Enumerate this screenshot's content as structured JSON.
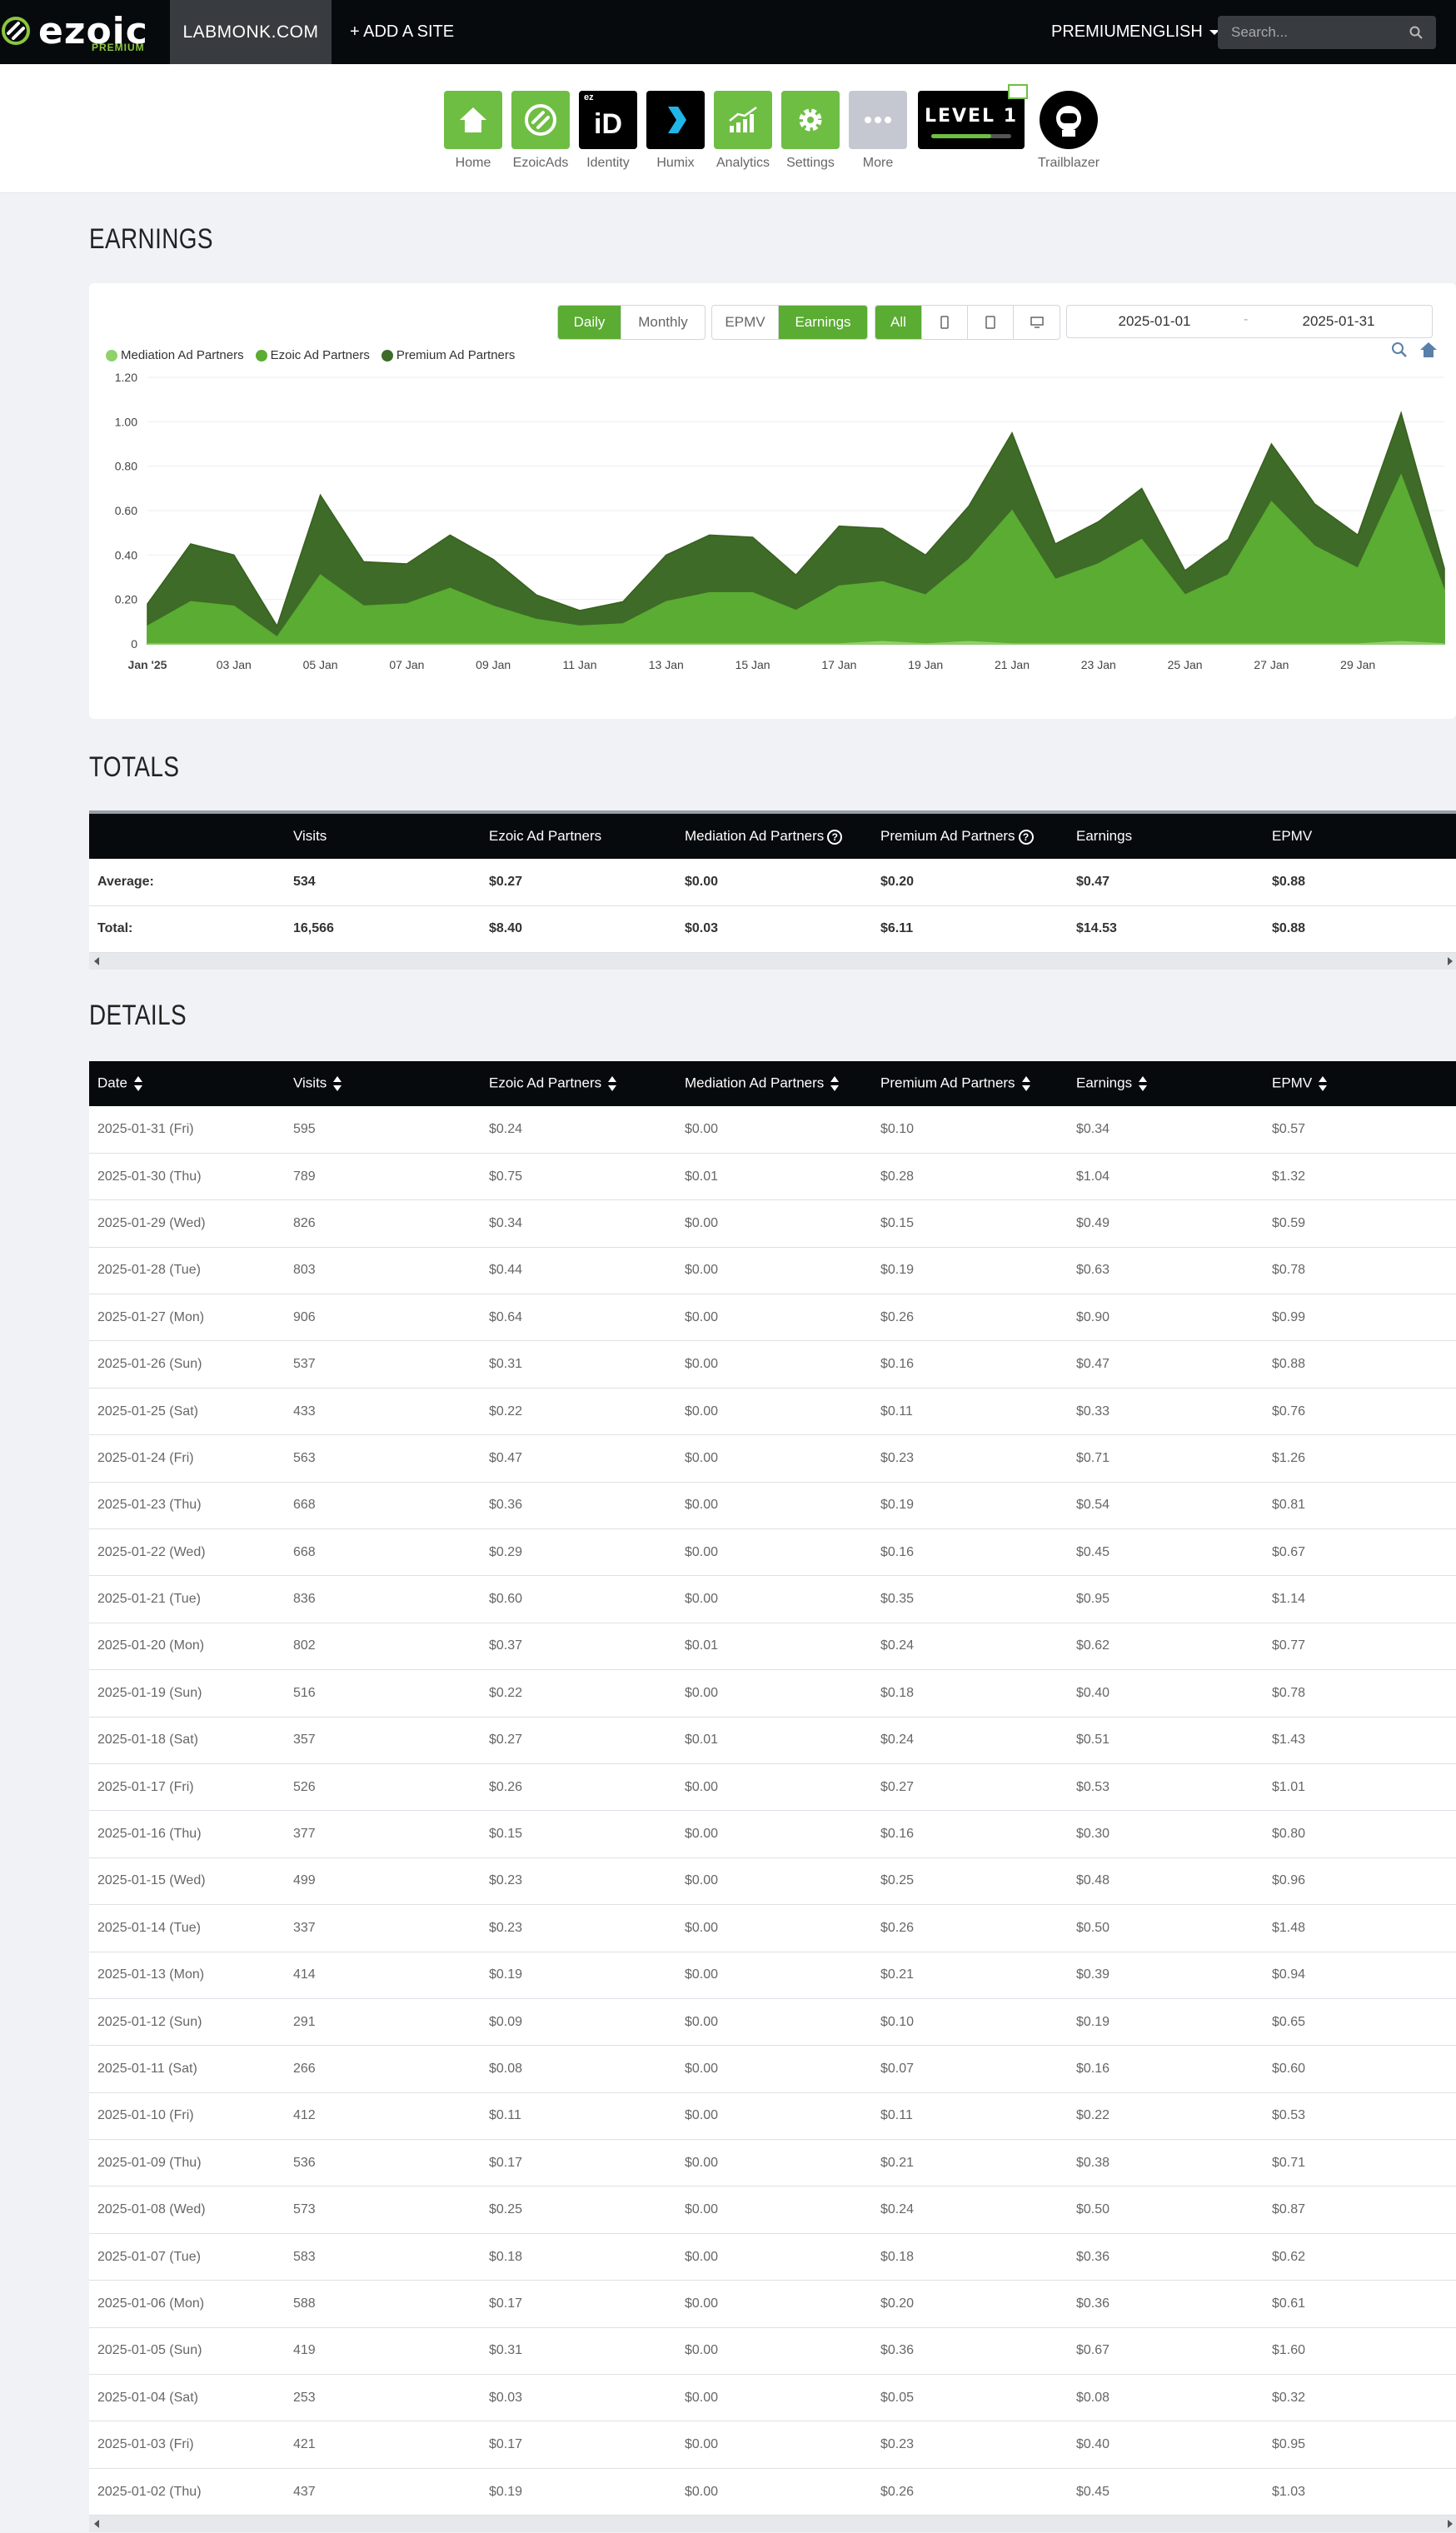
{
  "topbar": {
    "brand": "ezoic",
    "brand_tier": "PREMIUM",
    "site": "LABMONK.COM",
    "add_site": "+ ADD A SITE",
    "premium": "PREMIUM",
    "language": "ENGLISH",
    "search_placeholder": "Search..."
  },
  "apps": [
    {
      "label": "Home",
      "icon": "home-icon"
    },
    {
      "label": "EzoicAds",
      "icon": "ezoicads-icon"
    },
    {
      "label": "Identity",
      "icon": "identity-icon",
      "badge": "ez",
      "text": "iD"
    },
    {
      "label": "Humix",
      "icon": "humix-icon"
    },
    {
      "label": "Analytics",
      "icon": "analytics-icon"
    },
    {
      "label": "Settings",
      "icon": "gear-icon"
    },
    {
      "label": "More",
      "icon": "more-icon"
    }
  ],
  "level": {
    "label": "LEVEL 1",
    "progress": 0.75
  },
  "trailblazer": {
    "label": "Trailblazer"
  },
  "sections": {
    "earnings": "EARNINGS",
    "totals": "TOTALS",
    "details": "DETAILS"
  },
  "controls": {
    "daily": "Daily",
    "monthly": "Monthly",
    "epmv": "EPMV",
    "earnings": "Earnings",
    "all": "All",
    "start_date": "2025-01-01",
    "end_date": "2025-01-31",
    "dash": "-"
  },
  "colors": {
    "mediation": "#8fd16b",
    "ezoic": "#5aac32",
    "premium": "#3e6b27",
    "accent": "#5aac32"
  },
  "chart_data": {
    "type": "area",
    "stacked": true,
    "x": [
      "2025-01-01",
      "2025-01-02",
      "2025-01-03",
      "2025-01-04",
      "2025-01-05",
      "2025-01-06",
      "2025-01-07",
      "2025-01-08",
      "2025-01-09",
      "2025-01-10",
      "2025-01-11",
      "2025-01-12",
      "2025-01-13",
      "2025-01-14",
      "2025-01-15",
      "2025-01-16",
      "2025-01-17",
      "2025-01-18",
      "2025-01-19",
      "2025-01-20",
      "2025-01-21",
      "2025-01-22",
      "2025-01-23",
      "2025-01-24",
      "2025-01-25",
      "2025-01-26",
      "2025-01-27",
      "2025-01-28",
      "2025-01-29",
      "2025-01-30",
      "2025-01-31"
    ],
    "x_tick_labels": [
      "Jan '25",
      "03 Jan",
      "05 Jan",
      "07 Jan",
      "09 Jan",
      "11 Jan",
      "13 Jan",
      "15 Jan",
      "17 Jan",
      "19 Jan",
      "21 Jan",
      "23 Jan",
      "25 Jan",
      "27 Jan",
      "29 Jan"
    ],
    "series": [
      {
        "name": "Mediation Ad Partners",
        "values": [
          0.0,
          0.0,
          0.0,
          0.0,
          0.0,
          0.0,
          0.0,
          0.0,
          0.0,
          0.0,
          0.0,
          0.0,
          0.0,
          0.0,
          0.0,
          0.0,
          0.0,
          0.01,
          0.0,
          0.01,
          0.0,
          0.0,
          0.0,
          0.0,
          0.0,
          0.0,
          0.0,
          0.0,
          0.0,
          0.01,
          0.0
        ]
      },
      {
        "name": "Ezoic Ad Partners",
        "values": [
          0.08,
          0.19,
          0.17,
          0.03,
          0.31,
          0.17,
          0.18,
          0.25,
          0.17,
          0.11,
          0.08,
          0.09,
          0.19,
          0.23,
          0.23,
          0.15,
          0.26,
          0.27,
          0.22,
          0.37,
          0.6,
          0.29,
          0.36,
          0.47,
          0.22,
          0.31,
          0.64,
          0.44,
          0.34,
          0.75,
          0.24
        ]
      },
      {
        "name": "Premium Ad Partners",
        "values": [
          0.1,
          0.26,
          0.23,
          0.05,
          0.36,
          0.2,
          0.18,
          0.24,
          0.21,
          0.11,
          0.07,
          0.1,
          0.21,
          0.26,
          0.25,
          0.16,
          0.27,
          0.24,
          0.18,
          0.24,
          0.35,
          0.16,
          0.19,
          0.23,
          0.11,
          0.16,
          0.26,
          0.19,
          0.15,
          0.28,
          0.1
        ]
      }
    ],
    "y_ticks": [
      "0",
      "0.20",
      "0.40",
      "0.60",
      "0.80",
      "1.00",
      "1.20"
    ],
    "ylim": [
      0,
      1.2
    ],
    "legend": "top-left"
  },
  "totals": {
    "headers": [
      "",
      "Visits",
      "Ezoic Ad Partners",
      "Mediation Ad Partners",
      "Premium Ad Partners",
      "Earnings",
      "EPMV"
    ],
    "rows": [
      [
        "Average:",
        "534",
        "$0.27",
        "$0.00",
        "$0.20",
        "$0.47",
        "$0.88"
      ],
      [
        "Total:",
        "16,566",
        "$8.40",
        "$0.03",
        "$6.11",
        "$14.53",
        "$0.88"
      ]
    ]
  },
  "details": {
    "headers": [
      "Date",
      "Visits",
      "Ezoic Ad Partners",
      "Mediation Ad Partners",
      "Premium Ad Partners",
      "Earnings",
      "EPMV"
    ],
    "rows": [
      [
        "2025-01-31 (Fri)",
        "595",
        "$0.24",
        "$0.00",
        "$0.10",
        "$0.34",
        "$0.57"
      ],
      [
        "2025-01-30 (Thu)",
        "789",
        "$0.75",
        "$0.01",
        "$0.28",
        "$1.04",
        "$1.32"
      ],
      [
        "2025-01-29 (Wed)",
        "826",
        "$0.34",
        "$0.00",
        "$0.15",
        "$0.49",
        "$0.59"
      ],
      [
        "2025-01-28 (Tue)",
        "803",
        "$0.44",
        "$0.00",
        "$0.19",
        "$0.63",
        "$0.78"
      ],
      [
        "2025-01-27 (Mon)",
        "906",
        "$0.64",
        "$0.00",
        "$0.26",
        "$0.90",
        "$0.99"
      ],
      [
        "2025-01-26 (Sun)",
        "537",
        "$0.31",
        "$0.00",
        "$0.16",
        "$0.47",
        "$0.88"
      ],
      [
        "2025-01-25 (Sat)",
        "433",
        "$0.22",
        "$0.00",
        "$0.11",
        "$0.33",
        "$0.76"
      ],
      [
        "2025-01-24 (Fri)",
        "563",
        "$0.47",
        "$0.00",
        "$0.23",
        "$0.71",
        "$1.26"
      ],
      [
        "2025-01-23 (Thu)",
        "668",
        "$0.36",
        "$0.00",
        "$0.19",
        "$0.54",
        "$0.81"
      ],
      [
        "2025-01-22 (Wed)",
        "668",
        "$0.29",
        "$0.00",
        "$0.16",
        "$0.45",
        "$0.67"
      ],
      [
        "2025-01-21 (Tue)",
        "836",
        "$0.60",
        "$0.00",
        "$0.35",
        "$0.95",
        "$1.14"
      ],
      [
        "2025-01-20 (Mon)",
        "802",
        "$0.37",
        "$0.01",
        "$0.24",
        "$0.62",
        "$0.77"
      ],
      [
        "2025-01-19 (Sun)",
        "516",
        "$0.22",
        "$0.00",
        "$0.18",
        "$0.40",
        "$0.78"
      ],
      [
        "2025-01-18 (Sat)",
        "357",
        "$0.27",
        "$0.01",
        "$0.24",
        "$0.51",
        "$1.43"
      ],
      [
        "2025-01-17 (Fri)",
        "526",
        "$0.26",
        "$0.00",
        "$0.27",
        "$0.53",
        "$1.01"
      ],
      [
        "2025-01-16 (Thu)",
        "377",
        "$0.15",
        "$0.00",
        "$0.16",
        "$0.30",
        "$0.80"
      ],
      [
        "2025-01-15 (Wed)",
        "499",
        "$0.23",
        "$0.00",
        "$0.25",
        "$0.48",
        "$0.96"
      ],
      [
        "2025-01-14 (Tue)",
        "337",
        "$0.23",
        "$0.00",
        "$0.26",
        "$0.50",
        "$1.48"
      ],
      [
        "2025-01-13 (Mon)",
        "414",
        "$0.19",
        "$0.00",
        "$0.21",
        "$0.39",
        "$0.94"
      ],
      [
        "2025-01-12 (Sun)",
        "291",
        "$0.09",
        "$0.00",
        "$0.10",
        "$0.19",
        "$0.65"
      ],
      [
        "2025-01-11 (Sat)",
        "266",
        "$0.08",
        "$0.00",
        "$0.07",
        "$0.16",
        "$0.60"
      ],
      [
        "2025-01-10 (Fri)",
        "412",
        "$0.11",
        "$0.00",
        "$0.11",
        "$0.22",
        "$0.53"
      ],
      [
        "2025-01-09 (Thu)",
        "536",
        "$0.17",
        "$0.00",
        "$0.21",
        "$0.38",
        "$0.71"
      ],
      [
        "2025-01-08 (Wed)",
        "573",
        "$0.25",
        "$0.00",
        "$0.24",
        "$0.50",
        "$0.87"
      ],
      [
        "2025-01-07 (Tue)",
        "583",
        "$0.18",
        "$0.00",
        "$0.18",
        "$0.36",
        "$0.62"
      ],
      [
        "2025-01-06 (Mon)",
        "588",
        "$0.17",
        "$0.00",
        "$0.20",
        "$0.36",
        "$0.61"
      ],
      [
        "2025-01-05 (Sun)",
        "419",
        "$0.31",
        "$0.00",
        "$0.36",
        "$0.67",
        "$1.60"
      ],
      [
        "2025-01-04 (Sat)",
        "253",
        "$0.03",
        "$0.00",
        "$0.05",
        "$0.08",
        "$0.32"
      ],
      [
        "2025-01-03 (Fri)",
        "421",
        "$0.17",
        "$0.00",
        "$0.23",
        "$0.40",
        "$0.95"
      ],
      [
        "2025-01-02 (Thu)",
        "437",
        "$0.19",
        "$0.00",
        "$0.26",
        "$0.45",
        "$1.03"
      ]
    ]
  }
}
